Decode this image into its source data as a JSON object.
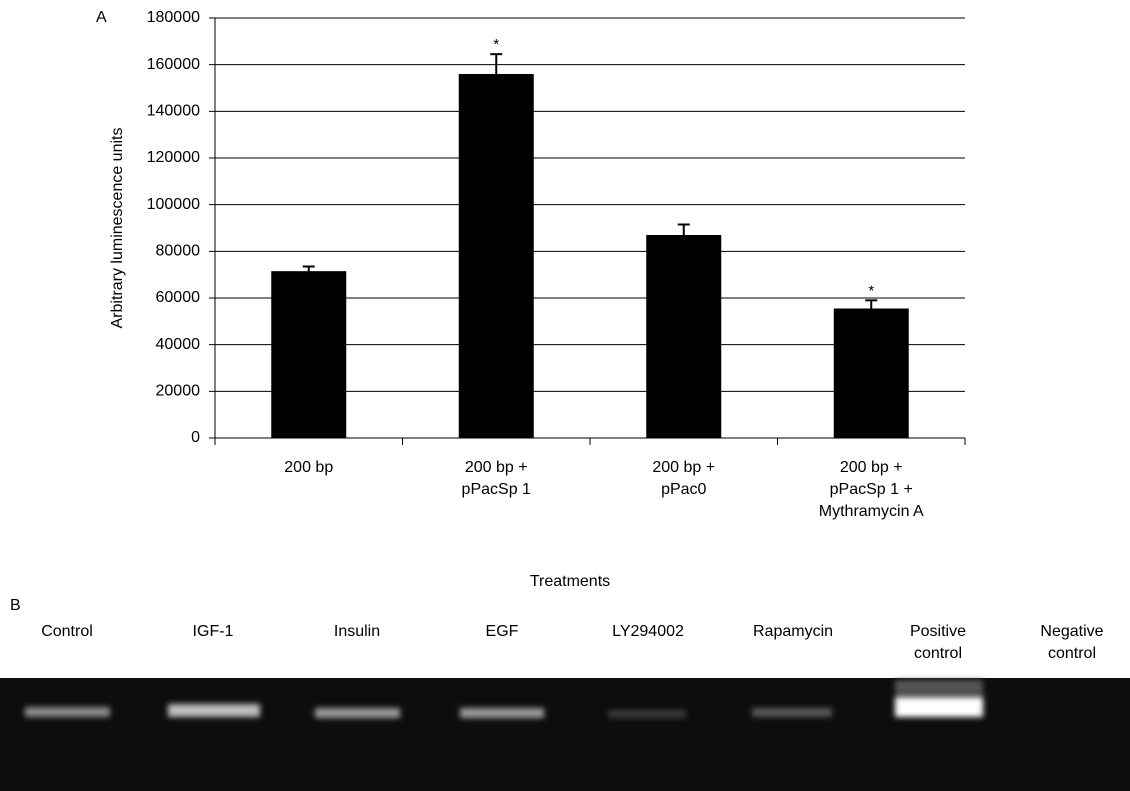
{
  "chart_data": {
    "type": "bar",
    "panel_label": "A",
    "categories": [
      [
        "200 bp"
      ],
      [
        "200 bp +",
        "pPacSp 1"
      ],
      [
        "200 bp +",
        "pPac0"
      ],
      [
        "200 bp +",
        "pPacSp 1 +",
        "Mythramycin A"
      ]
    ],
    "values": [
      71500,
      156000,
      87000,
      55500
    ],
    "errors": [
      2000,
      8500,
      4500,
      3500
    ],
    "significance": [
      null,
      "*",
      null,
      "*"
    ],
    "color": "#000000",
    "ylabel": "Arbitrary luminescence units",
    "xlabel": "Treatments",
    "ylim": [
      0,
      180000
    ],
    "yticks": [
      0,
      20000,
      40000,
      60000,
      80000,
      100000,
      120000,
      140000,
      160000,
      180000
    ],
    "grid": true
  },
  "panel_b": {
    "panel_label": "B",
    "lanes": [
      [
        "Control"
      ],
      [
        "IGF-1"
      ],
      [
        "Insulin"
      ],
      [
        "EGF"
      ],
      [
        "LY294002"
      ],
      [
        "Rapamycin"
      ],
      [
        "Positive",
        "control"
      ],
      [
        "Negative",
        "control"
      ]
    ]
  }
}
